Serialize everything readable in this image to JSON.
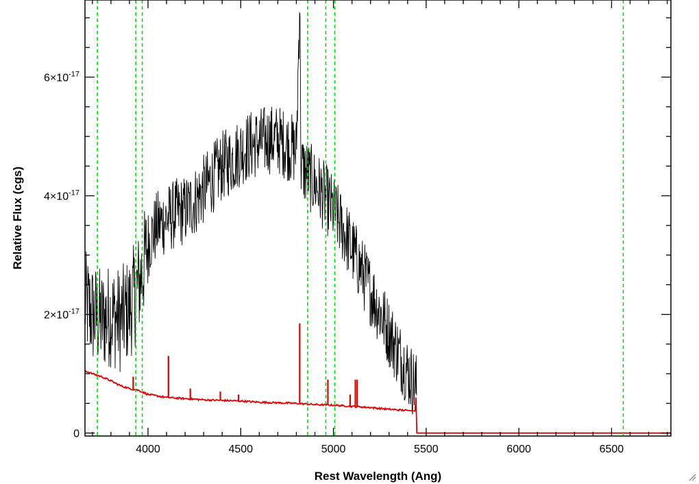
{
  "chart_data": {
    "type": "line",
    "xlabel": "Rest Wavelength (Ang)",
    "ylabel": "Relative Flux (cgs)",
    "xlim": [
      3660,
      6820
    ],
    "ylim": [
      -5e-19,
      7.3e-17
    ],
    "x_ticks": [
      {
        "value": 4000,
        "label": "4000"
      },
      {
        "value": 4500,
        "label": "4500"
      },
      {
        "value": 5000,
        "label": "5000"
      },
      {
        "value": 5500,
        "label": "5500"
      },
      {
        "value": 6000,
        "label": "6000"
      },
      {
        "value": 6500,
        "label": "6500"
      }
    ],
    "y_ticks": [
      {
        "value": 0,
        "label": "0",
        "mantissa": "0",
        "exponent": ""
      },
      {
        "value": 2e-17,
        "label": "2×10^-17",
        "mantissa": "2×10",
        "exponent": "-17"
      },
      {
        "value": 4e-17,
        "label": "4×10^-17",
        "mantissa": "4×10",
        "exponent": "-17"
      },
      {
        "value": 6e-17,
        "label": "6×10^-17",
        "mantissa": "6×10",
        "exponent": "-17"
      }
    ],
    "grid": false,
    "colors": {
      "spectrum": "#000000",
      "error": "#e00000",
      "lines": "#00dd00"
    },
    "reference_lines": [
      3727,
      3934,
      3969,
      4861,
      4959,
      5007,
      6563
    ],
    "series": [
      {
        "color": "#000000",
        "x": [
          3660,
          3700,
          3750,
          3800,
          3850,
          3900,
          3950,
          3975,
          4000,
          4050,
          4100,
          4150,
          4200,
          4250,
          4300,
          4350,
          4400,
          4450,
          4500,
          4550,
          4600,
          4650,
          4700,
          4750,
          4800,
          4818,
          4825,
          4850,
          4900,
          4950,
          5000,
          5050,
          5100,
          5150,
          5200,
          5250,
          5300,
          5350,
          5400,
          5440,
          5450
        ],
        "y": [
          2.2e-17,
          2e-17,
          1.9e-17,
          2e-17,
          1.9e-17,
          2.1e-17,
          2.5e-17,
          2.8e-17,
          3.2e-17,
          3.5e-17,
          3.6e-17,
          3.7e-17,
          3.75e-17,
          3.9e-17,
          4.1e-17,
          4.3e-17,
          4.5e-17,
          4.6e-17,
          4.75e-17,
          4.85e-17,
          4.9e-17,
          4.95e-17,
          4.95e-17,
          4.85e-17,
          4.75e-17,
          7.3e-17,
          4.5e-17,
          4.4e-17,
          4.2e-17,
          4e-17,
          3.75e-17,
          3.45e-17,
          3.1e-17,
          2.75e-17,
          2.4e-17,
          2.05e-17,
          1.7e-17,
          1.35e-17,
          1.05e-17,
          8e-18,
          7.5e-18
        ]
      },
      {
        "color": "#e00000",
        "x": [
          3660,
          3700,
          3750,
          3800,
          3850,
          3900,
          3950,
          4000,
          4100,
          4200,
          4300,
          4400,
          4500,
          4600,
          4700,
          4800,
          4900,
          5000,
          5050,
          5100,
          5150,
          5200,
          5300,
          5400,
          5440,
          5445,
          5450,
          6820
        ],
        "y": [
          1.05e-17,
          1e-17,
          9.5e-18,
          8.8e-18,
          8e-18,
          7.5e-18,
          7.2e-18,
          6.5e-18,
          6e-18,
          5.8e-18,
          5.6e-18,
          5.5e-18,
          5.4e-18,
          5.2e-18,
          5.1e-18,
          5e-18,
          4.8e-18,
          4.7e-18,
          4.6e-18,
          4.5e-18,
          4.4e-18,
          4.3e-18,
          4e-18,
          3.8e-18,
          3.7e-18,
          6e-18,
          0.0,
          0.0
        ]
      }
    ],
    "error_spikes": [
      {
        "x": 3920,
        "y": 9.5e-18
      },
      {
        "x": 4110,
        "y": 1.3e-17
      },
      {
        "x": 4228,
        "y": 7.5e-18
      },
      {
        "x": 4390,
        "y": 7e-18
      },
      {
        "x": 4488,
        "y": 6.5e-18
      },
      {
        "x": 4818,
        "y": 1.85e-17
      },
      {
        "x": 4970,
        "y": 9e-18
      },
      {
        "x": 5090,
        "y": 6.5e-18
      },
      {
        "x": 5118,
        "y": 9e-18
      },
      {
        "x": 5128,
        "y": 9e-18
      }
    ]
  }
}
